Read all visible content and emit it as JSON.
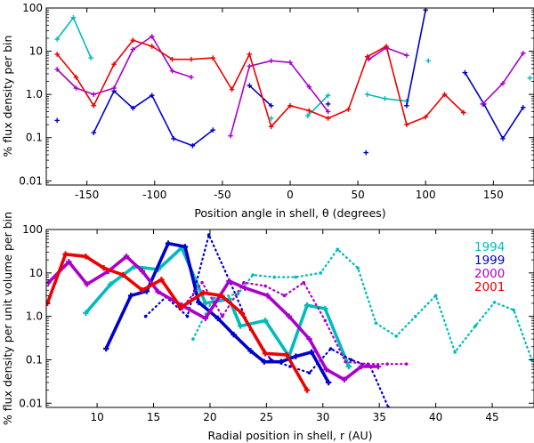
{
  "chart_data": [
    {
      "type": "line",
      "xlabel": "Position angle in shell, θ (degrees)",
      "ylabel": "% flux density per bin",
      "xlim": [
        -180,
        180
      ],
      "ylim": [
        0.008,
        100
      ],
      "yscale": "log",
      "xticks": [
        "-150",
        "-100",
        "-50",
        "0",
        "50",
        "100",
        "150"
      ],
      "xtick_values": [
        -150,
        -100,
        -50,
        0,
        50,
        100,
        150
      ],
      "yticks": [
        "0.01",
        "0.1",
        "1.0",
        "10",
        "100"
      ],
      "ytick_values": [
        0.01,
        0.1,
        1,
        10,
        100
      ],
      "series": [
        {
          "name": "1994",
          "color": "#00bbbb",
          "segments": [
            [
              [
                -172,
                19
              ],
              [
                -160,
                60
              ],
              [
                -147,
                7
              ]
            ],
            [
              [
                -14,
                0.28
              ]
            ],
            [
              [
                13,
                0.32
              ],
              [
                28,
                0.95
              ]
            ],
            [
              [
                57,
                1.0
              ],
              [
                70,
                0.8
              ],
              [
                86,
                0.7
              ]
            ],
            [
              [
                102,
                6
              ]
            ],
            [
              [
                128,
                0.38
              ]
            ],
            [
              [
                177,
                2.4
              ]
            ]
          ]
        },
        {
          "name": "1999",
          "color": "#0000cc",
          "segments": [
            [
              [
                -172,
                0.25
              ]
            ],
            [
              [
                -145,
                0.13
              ],
              [
                -130,
                1.2
              ],
              [
                -116,
                0.48
              ],
              [
                -102,
                0.95
              ],
              [
                -86,
                0.095
              ],
              [
                -72,
                0.065
              ],
              [
                -57,
                0.15
              ]
            ],
            [
              [
                -30,
                1.6
              ],
              [
                -14,
                0.55
              ]
            ],
            [
              [
                28,
                0.6
              ]
            ],
            [
              [
                56,
                0.045
              ]
            ],
            [
              [
                86,
                0.55
              ],
              [
                100,
                90
              ]
            ],
            [
              [
                129,
                3.2
              ],
              [
                143,
                0.6
              ],
              [
                157,
                0.095
              ],
              [
                172,
                0.5
              ]
            ]
          ]
        },
        {
          "name": "2000",
          "color": "#aa00cc",
          "segments": [
            [
              [
                -172,
                3.8
              ],
              [
                -158,
                1.4
              ],
              [
                -145,
                1.0
              ],
              [
                -130,
                1.4
              ],
              [
                -116,
                11
              ],
              [
                -102,
                22
              ],
              [
                -87,
                3.5
              ],
              [
                -73,
                2.5
              ]
            ],
            [
              [
                -44,
                0.11
              ],
              [
                -30,
                4.5
              ],
              [
                -14,
                6
              ],
              [
                0,
                5.5
              ],
              [
                14,
                1.5
              ],
              [
                28,
                0.4
              ]
            ],
            [
              [
                58,
                6.5
              ],
              [
                71,
                12
              ],
              [
                86,
                8
              ]
            ],
            [
              [
                142,
                0.6
              ],
              [
                157,
                1.8
              ],
              [
                172,
                9
              ]
            ]
          ]
        },
        {
          "name": "2001",
          "color": "#ee0000",
          "segments": [
            [
              [
                -172,
                8.5
              ],
              [
                -158,
                2.5
              ],
              [
                -145,
                0.55
              ],
              [
                -130,
                5
              ],
              [
                -116,
                18
              ],
              [
                -102,
                13
              ],
              [
                -87,
                6.5
              ],
              [
                -73,
                6.5
              ],
              [
                -57,
                7
              ],
              [
                -43,
                1.3
              ],
              [
                -30,
                8.5
              ],
              [
                -14,
                0.18
              ],
              [
                0,
                0.55
              ],
              [
                14,
                0.42
              ],
              [
                28,
                0.28
              ],
              [
                43,
                0.45
              ],
              [
                57,
                7.5
              ],
              [
                71,
                13
              ],
              [
                86,
                0.2
              ],
              [
                100,
                0.3
              ],
              [
                114,
                1.0
              ],
              [
                128,
                0.38
              ]
            ]
          ]
        }
      ]
    },
    {
      "type": "line",
      "xlabel": "Radial position in shell, r (AU)",
      "ylabel": "% flux density per unit volume per bin",
      "xlim": [
        5.5,
        48.7
      ],
      "ylim": [
        0.008,
        100
      ],
      "yscale": "log",
      "xticks": [
        "10",
        "15",
        "20",
        "25",
        "30",
        "35",
        "40",
        "45"
      ],
      "xtick_values": [
        10,
        15,
        20,
        25,
        30,
        35,
        40,
        45
      ],
      "yticks": [
        "0.01",
        "0.1",
        "1.0",
        "10",
        "100"
      ],
      "ytick_values": [
        0.01,
        0.1,
        1,
        10,
        100
      ],
      "legend": {
        "position": "top-right",
        "entries": [
          "1994",
          "1999",
          "2000",
          "2001"
        ]
      },
      "series": [
        {
          "name": "1994",
          "color": "#00bbbb",
          "style": "solid",
          "values": [
            [
              9.0,
              1.2
            ],
            [
              11.2,
              5.5
            ],
            [
              13.3,
              14
            ],
            [
              15.4,
              12
            ],
            [
              17.5,
              38
            ],
            [
              19.6,
              2.0
            ],
            [
              21.7,
              2.5
            ],
            [
              22.7,
              0.6
            ],
            [
              24.9,
              0.8
            ],
            [
              27.0,
              0.12
            ],
            [
              28.6,
              1.8
            ],
            [
              30.2,
              1.5
            ],
            [
              32.3,
              0.07
            ]
          ]
        },
        {
          "name": "1994",
          "color": "#00bbbb",
          "style": "dotted",
          "values": [
            [
              18.5,
              0.3
            ],
            [
              20.3,
              2.6
            ],
            [
              22.5,
              3.3
            ],
            [
              23.8,
              9
            ],
            [
              25.7,
              8
            ],
            [
              27.6,
              8
            ],
            [
              29.8,
              10
            ],
            [
              31.3,
              35
            ],
            [
              33.1,
              13
            ],
            [
              34.7,
              0.7
            ],
            [
              36.5,
              0.35
            ],
            [
              38.2,
              1.0
            ],
            [
              40.0,
              3.0
            ],
            [
              41.7,
              0.15
            ],
            [
              43.5,
              0.6
            ],
            [
              45.2,
              2.1
            ],
            [
              46.9,
              1.4
            ],
            [
              48.5,
              0.1
            ]
          ]
        },
        {
          "name": "1999",
          "color": "#0000cc",
          "style": "solid",
          "values": [
            [
              10.8,
              0.18
            ],
            [
              13.0,
              3.0
            ],
            [
              14.4,
              3.8
            ],
            [
              16.3,
              48
            ],
            [
              17.8,
              40
            ],
            [
              19.0,
              2.1
            ],
            [
              20.7,
              0.9
            ],
            [
              22.1,
              0.38
            ],
            [
              23.6,
              0.16
            ],
            [
              24.8,
              0.09
            ],
            [
              26.3,
              0.09
            ],
            [
              27.6,
              0.12
            ],
            [
              29.0,
              0.15
            ],
            [
              30.5,
              0.03
            ]
          ]
        },
        {
          "name": "1999",
          "color": "#0000cc",
          "style": "dotted",
          "values": [
            [
              14.3,
              1.0
            ],
            [
              16.1,
              2.8
            ],
            [
              18.0,
              1.0
            ],
            [
              19.9,
              75
            ],
            [
              21.8,
              6
            ],
            [
              23.6,
              0.5
            ],
            [
              25.4,
              0.1
            ],
            [
              27.1,
              0.07
            ],
            [
              28.8,
              0.05
            ],
            [
              30.7,
              0.18
            ],
            [
              32.5,
              0.1
            ],
            [
              34.2,
              0.07
            ],
            [
              35.8,
              0.008
            ]
          ]
        },
        {
          "name": "2000",
          "color": "#aa00cc",
          "style": "solid",
          "values": [
            [
              5.7,
              6.0
            ],
            [
              7.5,
              18
            ],
            [
              9.1,
              5.5
            ],
            [
              11.0,
              11
            ],
            [
              12.6,
              24
            ],
            [
              14.0,
              11
            ],
            [
              15.4,
              3.7
            ],
            [
              17.5,
              1.8
            ],
            [
              19.6,
              0.9
            ],
            [
              21.7,
              6.5
            ],
            [
              23.1,
              4.5
            ],
            [
              25.1,
              3.0
            ],
            [
              27.0,
              1.0
            ],
            [
              28.8,
              0.3
            ],
            [
              30.3,
              0.06
            ],
            [
              31.9,
              0.035
            ],
            [
              33.4,
              0.07
            ],
            [
              34.9,
              0.07
            ]
          ]
        },
        {
          "name": "2000",
          "color": "#aa00cc",
          "style": "dotted",
          "values": [
            [
              17.5,
              1.5
            ],
            [
              19.3,
              6
            ],
            [
              21.1,
              1.0
            ],
            [
              23.0,
              6
            ],
            [
              24.9,
              5
            ],
            [
              26.6,
              3
            ],
            [
              28.3,
              6
            ],
            [
              30.2,
              0.8
            ],
            [
              32.0,
              0.09
            ],
            [
              34.0,
              0.08
            ],
            [
              35.7,
              0.08
            ],
            [
              37.4,
              0.08
            ]
          ]
        },
        {
          "name": "2001",
          "color": "#ee0000",
          "style": "solid",
          "values": [
            [
              5.6,
              2.0
            ],
            [
              7.2,
              27
            ],
            [
              9.0,
              24
            ],
            [
              10.6,
              13
            ],
            [
              12.3,
              9
            ],
            [
              14.0,
              4
            ],
            [
              15.7,
              7
            ],
            [
              17.4,
              1.6
            ],
            [
              19.4,
              3.5
            ],
            [
              21.0,
              3
            ],
            [
              22.8,
              1.2
            ],
            [
              24.9,
              0.14
            ],
            [
              26.8,
              0.13
            ],
            [
              28.6,
              0.02
            ]
          ]
        }
      ]
    }
  ]
}
